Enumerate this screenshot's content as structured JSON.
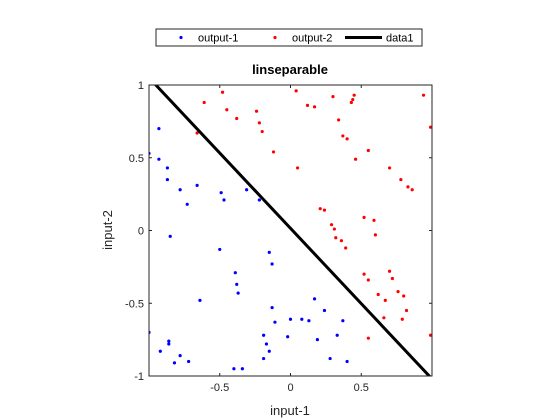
{
  "chart_data": {
    "type": "scatter",
    "title": "linseparable",
    "xlabel": "input-1",
    "ylabel": "input-2",
    "xlim": [
      -1,
      1
    ],
    "ylim": [
      -1,
      1
    ],
    "xticks": [
      -0.5,
      0,
      0.5
    ],
    "xtick_labels": [
      "-0.5",
      "0",
      "0.5"
    ],
    "yticks": [
      -1,
      -0.5,
      0,
      0.5,
      1
    ],
    "ytick_labels": [
      "-1",
      "-0.5",
      "0",
      "0.5",
      "1"
    ],
    "grid": false,
    "legend_position": "top-outside",
    "series": [
      {
        "name": "output-1",
        "color": "#0000ff",
        "marker": "dot",
        "points": [
          [
            -1.0,
            0.53
          ],
          [
            -0.93,
            0.7
          ],
          [
            -0.93,
            0.49
          ],
          [
            -0.87,
            0.43
          ],
          [
            -0.87,
            0.35
          ],
          [
            -0.85,
            -0.04
          ],
          [
            -0.78,
            0.28
          ],
          [
            -0.73,
            0.18
          ],
          [
            -0.66,
            0.31
          ],
          [
            -0.49,
            0.26
          ],
          [
            -0.47,
            0.21
          ],
          [
            -0.31,
            0.28
          ],
          [
            -0.22,
            0.21
          ],
          [
            -0.5,
            -0.13
          ],
          [
            -0.39,
            -0.29
          ],
          [
            -0.38,
            -0.37
          ],
          [
            -0.37,
            -0.43
          ],
          [
            -0.15,
            -0.15
          ],
          [
            -0.13,
            -0.23
          ],
          [
            -0.64,
            -0.48
          ],
          [
            -1.0,
            -0.7
          ],
          [
            -0.92,
            -0.83
          ],
          [
            -0.86,
            -0.76
          ],
          [
            -0.86,
            -0.78
          ],
          [
            -0.82,
            -0.91
          ],
          [
            -0.78,
            -0.86
          ],
          [
            -0.72,
            -0.9
          ],
          [
            -0.4,
            -0.95
          ],
          [
            -0.34,
            -0.95
          ],
          [
            -0.19,
            -0.72
          ],
          [
            -0.19,
            -0.88
          ],
          [
            -0.17,
            -0.78
          ],
          [
            -0.15,
            -0.83
          ],
          [
            -0.13,
            -0.53
          ],
          [
            -0.11,
            -0.63
          ],
          [
            -0.02,
            -0.73
          ],
          [
            0.0,
            -0.61
          ],
          [
            0.08,
            -0.61
          ],
          [
            0.13,
            -0.62
          ],
          [
            0.17,
            -0.47
          ],
          [
            0.19,
            -0.75
          ],
          [
            0.24,
            -0.55
          ],
          [
            0.28,
            -0.88
          ],
          [
            0.33,
            -0.72
          ],
          [
            0.37,
            -0.62
          ],
          [
            0.4,
            -0.9
          ]
        ]
      },
      {
        "name": "output-2",
        "color": "#ff0000",
        "marker": "dot",
        "points": [
          [
            -0.61,
            0.88
          ],
          [
            -0.66,
            0.67
          ],
          [
            -0.48,
            0.95
          ],
          [
            -0.45,
            0.83
          ],
          [
            -0.38,
            0.77
          ],
          [
            -0.24,
            0.82
          ],
          [
            -0.22,
            0.74
          ],
          [
            -0.2,
            0.68
          ],
          [
            -0.12,
            0.54
          ],
          [
            0.04,
            0.96
          ],
          [
            0.12,
            0.86
          ],
          [
            0.17,
            0.85
          ],
          [
            0.44,
            0.9
          ],
          [
            0.45,
            0.93
          ],
          [
            0.3,
            0.92
          ],
          [
            0.43,
            0.88
          ],
          [
            0.34,
            0.76
          ],
          [
            0.37,
            0.65
          ],
          [
            0.4,
            0.63
          ],
          [
            0.55,
            0.55
          ],
          [
            0.46,
            0.49
          ],
          [
            0.7,
            0.43
          ],
          [
            0.78,
            0.35
          ],
          [
            0.83,
            0.3
          ],
          [
            0.86,
            0.28
          ],
          [
            0.94,
            0.93
          ],
          [
            0.99,
            0.71
          ],
          [
            0.05,
            0.43
          ],
          [
            0.24,
            0.14
          ],
          [
            0.29,
            0.04
          ],
          [
            0.31,
            0.01
          ],
          [
            0.32,
            -0.05
          ],
          [
            0.36,
            -0.07
          ],
          [
            0.39,
            -0.12
          ],
          [
            0.52,
            0.09
          ],
          [
            0.59,
            0.07
          ],
          [
            0.6,
            -0.03
          ],
          [
            0.52,
            -0.3
          ],
          [
            0.55,
            -0.34
          ],
          [
            0.62,
            -0.44
          ],
          [
            0.67,
            -0.48
          ],
          [
            0.7,
            -0.28
          ],
          [
            0.72,
            -0.33
          ],
          [
            0.76,
            -0.42
          ],
          [
            0.8,
            -0.45
          ],
          [
            0.82,
            -0.55
          ],
          [
            0.79,
            -0.61
          ],
          [
            0.66,
            -0.6
          ],
          [
            0.55,
            -0.74
          ],
          [
            0.99,
            -0.72
          ],
          [
            0.21,
            0.15
          ]
        ]
      },
      {
        "name": "data1",
        "color": "#000000",
        "marker": "line",
        "points": [
          [
            -1,
            1.05
          ],
          [
            1,
            -1.02
          ]
        ]
      }
    ]
  }
}
